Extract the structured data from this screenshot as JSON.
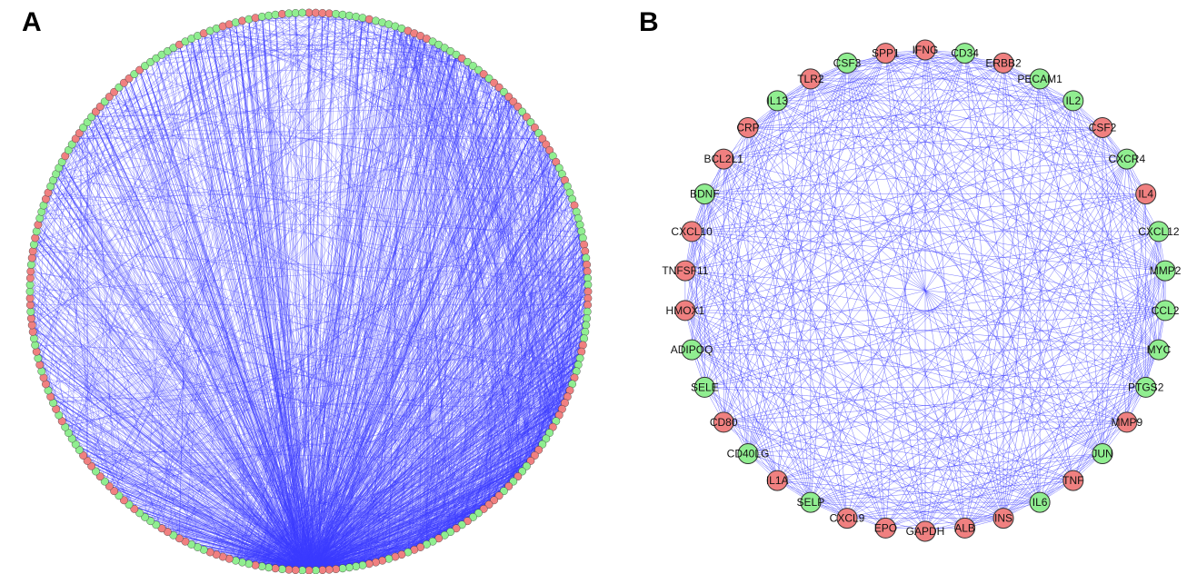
{
  "panels": {
    "a": {
      "label": "A",
      "node_count": 260,
      "edge_count": 2400
    },
    "b": {
      "label": "B",
      "nodes": [
        {
          "name": "IFNG",
          "group": "red"
        },
        {
          "name": "CD34",
          "group": "green"
        },
        {
          "name": "ERBB2",
          "group": "red"
        },
        {
          "name": "PECAM1",
          "group": "green"
        },
        {
          "name": "IL2",
          "group": "green"
        },
        {
          "name": "CSF2",
          "group": "red"
        },
        {
          "name": "CXCR4",
          "group": "green"
        },
        {
          "name": "IL4",
          "group": "red"
        },
        {
          "name": "CXCL12",
          "group": "green"
        },
        {
          "name": "MMP2",
          "group": "green"
        },
        {
          "name": "CCL2",
          "group": "green"
        },
        {
          "name": "MYC",
          "group": "green"
        },
        {
          "name": "PTGS2",
          "group": "green"
        },
        {
          "name": "MMP9",
          "group": "red"
        },
        {
          "name": "JUN",
          "group": "green"
        },
        {
          "name": "TNF",
          "group": "red"
        },
        {
          "name": "IL6",
          "group": "green"
        },
        {
          "name": "INS",
          "group": "red"
        },
        {
          "name": "ALB",
          "group": "red"
        },
        {
          "name": "GAPDH",
          "group": "red"
        },
        {
          "name": "EPO",
          "group": "red"
        },
        {
          "name": "CXCL9",
          "group": "red"
        },
        {
          "name": "SELP",
          "group": "green"
        },
        {
          "name": "IL1A",
          "group": "red"
        },
        {
          "name": "CD40LG",
          "group": "green"
        },
        {
          "name": "CD80",
          "group": "red"
        },
        {
          "name": "SELE",
          "group": "green"
        },
        {
          "name": "ADIPOQ",
          "group": "green"
        },
        {
          "name": "HMOX1",
          "group": "red"
        },
        {
          "name": "TNFSF11",
          "group": "red"
        },
        {
          "name": "CXCL10",
          "group": "red"
        },
        {
          "name": "BDNF",
          "group": "green"
        },
        {
          "name": "BCL2L1",
          "group": "red"
        },
        {
          "name": "CRP",
          "group": "red"
        },
        {
          "name": "IL13",
          "group": "green"
        },
        {
          "name": "TLR2",
          "group": "red"
        },
        {
          "name": "CSF3",
          "group": "green"
        },
        {
          "name": "SPP1",
          "group": "red"
        }
      ]
    }
  },
  "colors": {
    "edge": "#3b3bff",
    "node_red": "#f08080",
    "node_green": "#90ee90",
    "node_stroke": "#333333"
  }
}
